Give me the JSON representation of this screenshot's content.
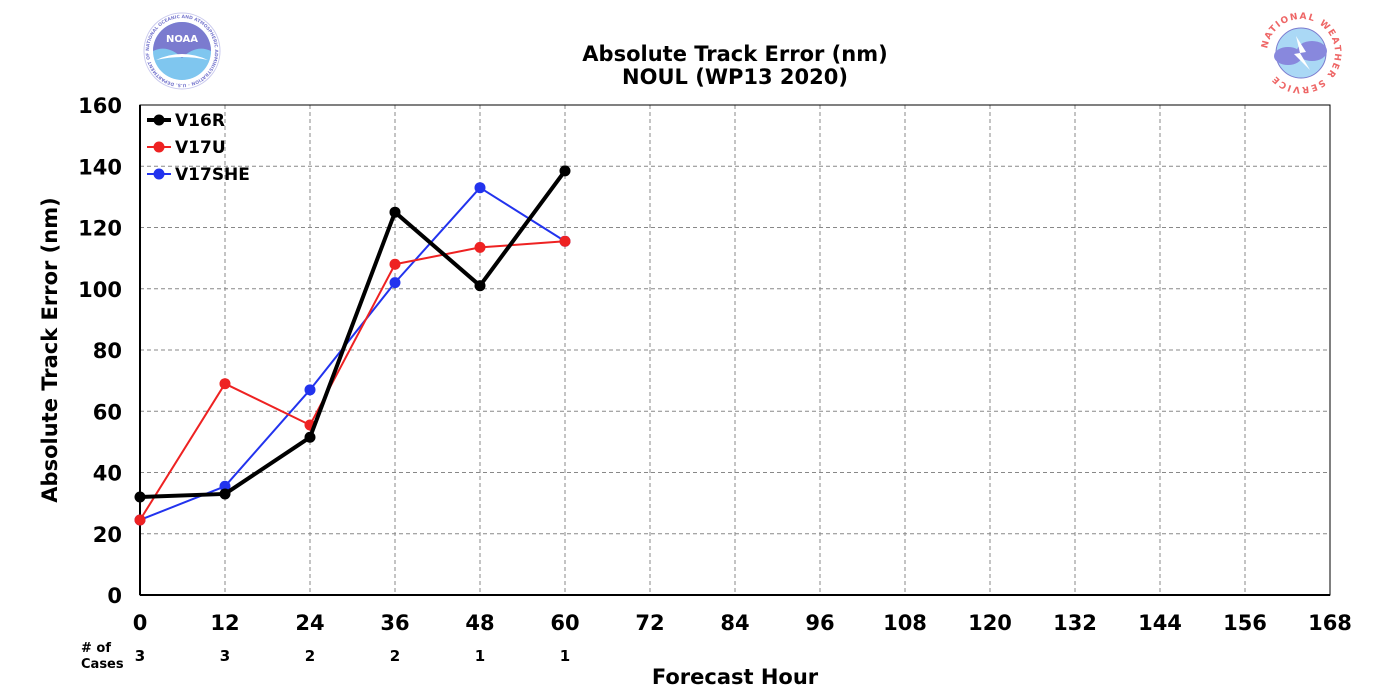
{
  "chart_data": {
    "type": "line",
    "title": "Absolute Track Error (nm)",
    "subtitle": "NOUL (WP13 2020)",
    "xlabel": "Forecast Hour",
    "ylabel": "Absolute Track Error (nm)",
    "xlim": [
      0,
      168
    ],
    "ylim": [
      0,
      160
    ],
    "xticks": [
      0,
      12,
      24,
      36,
      48,
      60,
      72,
      84,
      96,
      108,
      120,
      132,
      144,
      156,
      168
    ],
    "yticks": [
      0,
      20,
      40,
      60,
      80,
      100,
      120,
      140,
      160
    ],
    "grid": true,
    "legend_position": "top-left",
    "series": [
      {
        "name": "V16R",
        "color": "#000000",
        "x": [
          0,
          12,
          24,
          36,
          48,
          60
        ],
        "values": [
          32,
          33,
          51.5,
          125,
          101,
          138.5
        ]
      },
      {
        "name": "V17U",
        "color": "#ee2222",
        "x": [
          0,
          12,
          24,
          36,
          48,
          60
        ],
        "values": [
          24.5,
          69,
          55.5,
          108,
          113.5,
          115.5
        ]
      },
      {
        "name": "V17SHE",
        "color": "#2233ee",
        "x": [
          0,
          12,
          24,
          36,
          48,
          60
        ],
        "values": [
          24.5,
          35.5,
          67,
          102,
          133,
          115.5
        ]
      }
    ],
    "cases": {
      "label_line1": "# of",
      "label_line2": "Cases",
      "x": [
        0,
        12,
        24,
        36,
        48,
        60
      ],
      "values": [
        "3",
        "3",
        "2",
        "2",
        "1",
        "1"
      ]
    }
  },
  "logos": {
    "left": {
      "text": "NOAA",
      "ring_text": "NATIONAL OCEANIC AND ATMOSPHERIC ADMINISTRATION · U.S. DEPARTMENT OF COMMERCE",
      "primary": "#7b7bcf",
      "secondary": "#7fc6ef"
    },
    "right": {
      "ring_text": "NATIONAL WEATHER SERVICE",
      "ring_color": "#ee6666",
      "cloud_color": "#8888dd",
      "sky_color": "#aad8f5"
    }
  }
}
